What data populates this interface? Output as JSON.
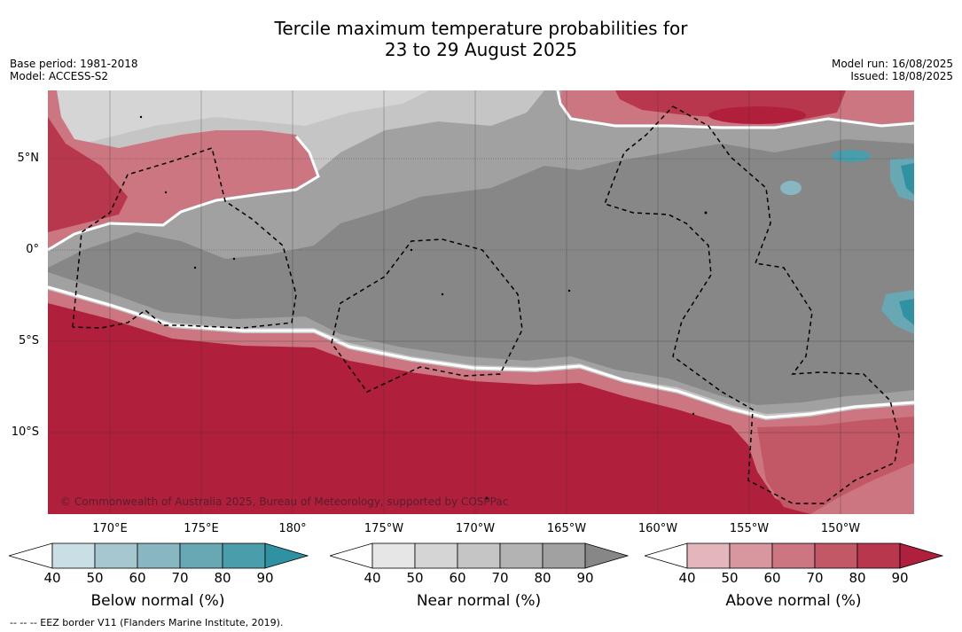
{
  "title_line1": "Tercile maximum temperature probabilities for",
  "title_line2": "23 to 29 August 2025",
  "base_period": "Base period: 1981-2018",
  "model": "Model: ACCESS-S2",
  "model_run": "Model run: 16/08/2025",
  "issued": "Issued: 18/08/2025",
  "lat_labels": [
    "5°N",
    "0°",
    "5°S",
    "10°S"
  ],
  "lon_labels": [
    "170°E",
    "175°E",
    "180°",
    "175°W",
    "170°W",
    "165°W",
    "160°W",
    "155°W",
    "150°W"
  ],
  "copyright": "© Commonwealth of Australia 2025, Bureau of Meteorology, supported by COSPPac",
  "footer": "--  --  -- EEZ border V11 (Flanders Marine Institute, 2019).",
  "colorbars": [
    {
      "title": "Below normal (%)",
      "ticks": [
        "40",
        "50",
        "60",
        "70",
        "80",
        "90"
      ],
      "colors": [
        "#c9dfe5",
        "#a6c7cf",
        "#88b6c1",
        "#68a8b4",
        "#4a9dab",
        "#2f91a1"
      ]
    },
    {
      "title": "Near normal (%)",
      "ticks": [
        "40",
        "50",
        "60",
        "70",
        "80",
        "90"
      ],
      "colors": [
        "#e6e6e6",
        "#d5d5d5",
        "#c5c5c5",
        "#b3b3b3",
        "#a1a1a1",
        "#878787"
      ]
    },
    {
      "title": "Above normal (%)",
      "ticks": [
        "40",
        "50",
        "60",
        "70",
        "80",
        "90"
      ],
      "colors": [
        "#e2b6bb",
        "#d8969e",
        "#cb7680",
        "#c25766",
        "#b8374d",
        "#b01f3c"
      ]
    }
  ]
}
